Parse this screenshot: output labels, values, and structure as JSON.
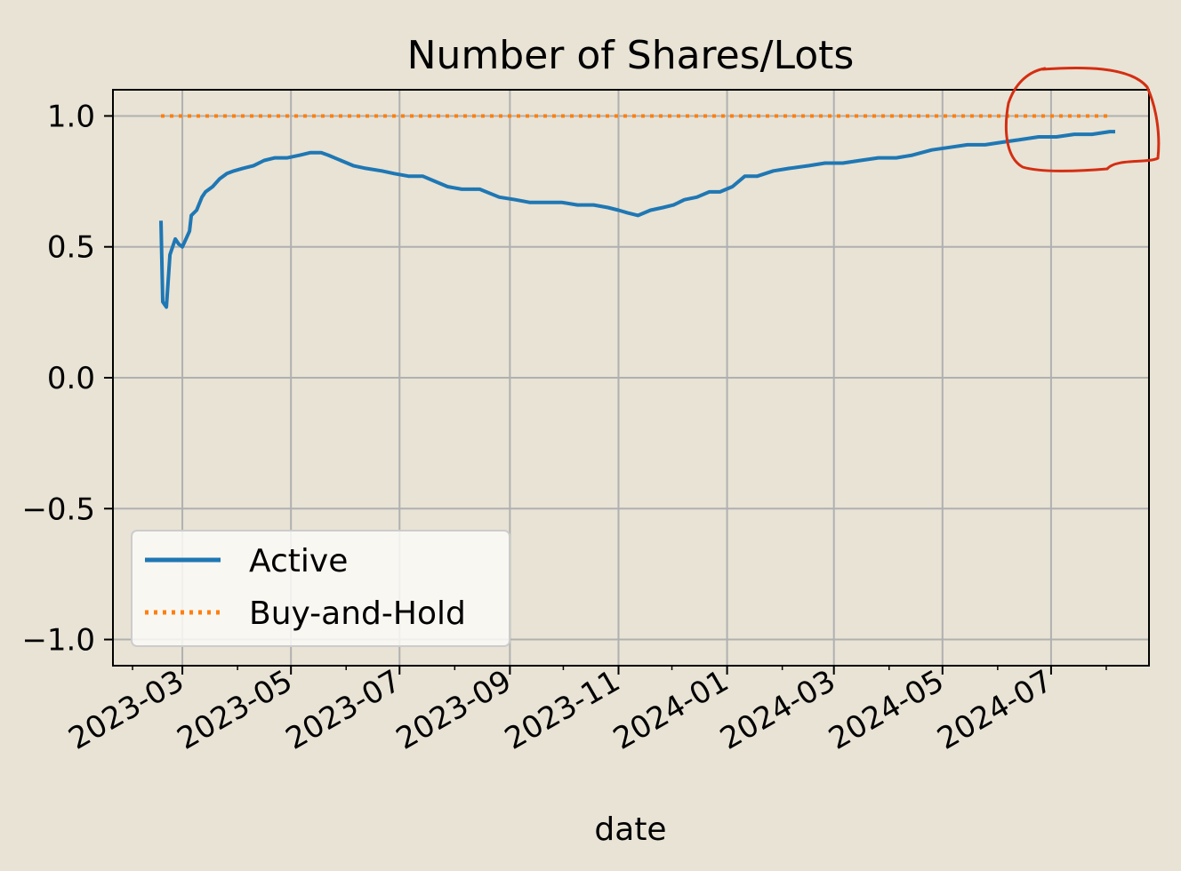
{
  "chart_data": {
    "type": "line",
    "title": "Number of Shares/Lots",
    "xlabel": "date",
    "ylabel": "",
    "xlim": [
      "2023-01-21",
      "2024-08-25"
    ],
    "ylim": [
      -1.1,
      1.1
    ],
    "x_ticks": [
      "2023-03",
      "2023-05",
      "2023-07",
      "2023-09",
      "2023-11",
      "2024-01",
      "2024-03",
      "2024-05",
      "2024-07"
    ],
    "y_ticks": [
      "1.0",
      "0.5",
      "0.0",
      "−0.5",
      "−1.0"
    ],
    "grid": true,
    "legend": {
      "location": "lower-left"
    },
    "series": [
      {
        "name": "Active",
        "color": "#1f77b4",
        "style": "solid",
        "x": [
          "2023-02-17",
          "2023-02-18",
          "2023-02-19",
          "2023-02-20",
          "2023-02-22",
          "2023-02-25",
          "2023-02-27",
          "2023-03-01",
          "2023-03-03",
          "2023-03-05",
          "2023-03-06",
          "2023-03-09",
          "2023-03-12",
          "2023-03-14",
          "2023-03-18",
          "2023-03-22",
          "2023-03-26",
          "2023-03-30",
          "2023-04-04",
          "2023-04-10",
          "2023-04-16",
          "2023-04-22",
          "2023-04-29",
          "2023-05-06",
          "2023-05-12",
          "2023-05-18",
          "2023-05-22",
          "2023-05-29",
          "2023-06-05",
          "2023-06-12",
          "2023-06-21",
          "2023-06-28",
          "2023-07-06",
          "2023-07-14",
          "2023-07-21",
          "2023-07-28",
          "2023-08-05",
          "2023-08-15",
          "2023-08-26",
          "2023-09-04",
          "2023-09-12",
          "2023-09-21",
          "2023-09-30",
          "2023-10-09",
          "2023-10-18",
          "2023-10-26",
          "2023-11-01",
          "2023-11-06",
          "2023-11-12",
          "2023-11-19",
          "2023-11-26",
          "2023-12-02",
          "2023-12-08",
          "2023-12-15",
          "2023-12-22",
          "2023-12-28",
          "2024-01-04",
          "2024-01-11",
          "2024-01-18",
          "2024-01-27",
          "2024-02-05",
          "2024-02-16",
          "2024-02-25",
          "2024-03-06",
          "2024-03-16",
          "2024-03-26",
          "2024-04-05",
          "2024-04-14",
          "2024-04-25",
          "2024-05-05",
          "2024-05-15",
          "2024-05-25",
          "2024-06-04",
          "2024-06-14",
          "2024-06-24",
          "2024-07-04",
          "2024-07-14",
          "2024-07-24",
          "2024-08-03",
          "2024-08-06"
        ],
        "y": [
          0.6,
          0.29,
          0.28,
          0.27,
          0.47,
          0.53,
          0.51,
          0.5,
          0.53,
          0.56,
          0.62,
          0.64,
          0.69,
          0.71,
          0.73,
          0.76,
          0.78,
          0.79,
          0.8,
          0.81,
          0.83,
          0.84,
          0.84,
          0.85,
          0.86,
          0.86,
          0.85,
          0.83,
          0.81,
          0.8,
          0.79,
          0.78,
          0.77,
          0.77,
          0.75,
          0.73,
          0.72,
          0.72,
          0.69,
          0.68,
          0.67,
          0.67,
          0.67,
          0.66,
          0.66,
          0.65,
          0.64,
          0.63,
          0.62,
          0.64,
          0.65,
          0.66,
          0.68,
          0.69,
          0.71,
          0.71,
          0.73,
          0.77,
          0.77,
          0.79,
          0.8,
          0.81,
          0.82,
          0.82,
          0.83,
          0.84,
          0.84,
          0.85,
          0.87,
          0.88,
          0.89,
          0.89,
          0.9,
          0.91,
          0.92,
          0.92,
          0.93,
          0.93,
          0.94,
          0.94
        ]
      },
      {
        "name": "Buy-and-Hold",
        "color": "#ff7f0e",
        "style": "dotted",
        "x": [
          "2023-02-17",
          "2024-08-03"
        ],
        "y": [
          1.0,
          1.0
        ]
      }
    ],
    "annotation": {
      "type": "hand-drawn circle",
      "color": "#d42e12",
      "around": "end of series (2024-06 to 2024-08, ~0.8 to ~1.1)"
    }
  }
}
